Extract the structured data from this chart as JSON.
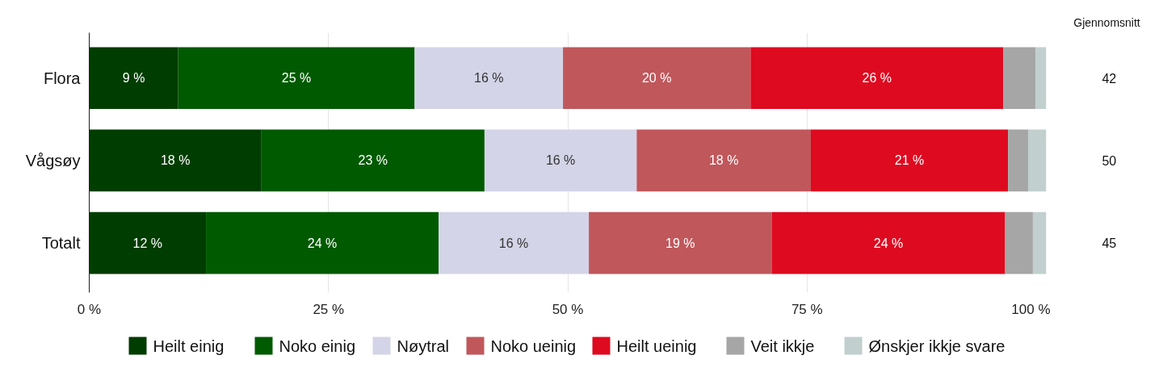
{
  "chart_data": {
    "type": "bar",
    "orientation": "horizontal",
    "stacked": true,
    "categories": [
      "Flora",
      "Vågsøy",
      "Totalt"
    ],
    "series": [
      {
        "name": "Heilt einig",
        "color": "#003d00",
        "values": [
          9.3,
          18.0,
          12.2
        ],
        "value_labels": [
          "9 %",
          "18 %",
          "12 %"
        ]
      },
      {
        "name": "Noko einig",
        "color": "#005a00",
        "values": [
          24.7,
          23.3,
          24.3
        ],
        "value_labels": [
          "25 %",
          "23 %",
          "24 %"
        ]
      },
      {
        "name": "Nøytral",
        "color": "#d4d4e8",
        "values": [
          15.5,
          15.9,
          15.7
        ],
        "value_labels": [
          "16 %",
          "16 %",
          "16 %"
        ]
      },
      {
        "name": "Noko ueinig",
        "color": "#c0575b",
        "values": [
          19.6,
          18.2,
          19.1
        ],
        "value_labels": [
          "20 %",
          "18 %",
          "19 %"
        ]
      },
      {
        "name": "Heilt ueinig",
        "color": "#de0a20",
        "values": [
          26.4,
          20.6,
          24.4
        ],
        "value_labels": [
          "26 %",
          "21 %",
          "24 %"
        ]
      },
      {
        "name": "Veit ikkje",
        "color": "#a6a6a6",
        "values": [
          3.4,
          2.1,
          2.9
        ],
        "value_labels": [
          null,
          null,
          null
        ]
      },
      {
        "name": "Ønskjer ikkje svare",
        "color": "#c2cfcf",
        "values": [
          1.1,
          1.9,
          1.4
        ],
        "value_labels": [
          null,
          null,
          null
        ]
      }
    ],
    "xlim": [
      0,
      100
    ],
    "xticks": [
      {
        "value": 0,
        "label": "0 %"
      },
      {
        "value": 25,
        "label": "25 %"
      },
      {
        "value": 50,
        "label": "50 %"
      },
      {
        "value": 75,
        "label": "75 %"
      },
      {
        "value": 100,
        "label": "100 %"
      }
    ],
    "grid": "x",
    "legend": "bottom",
    "annotations": [
      "Gjennomsnitt",
      "42",
      "50",
      "45"
    ]
  }
}
